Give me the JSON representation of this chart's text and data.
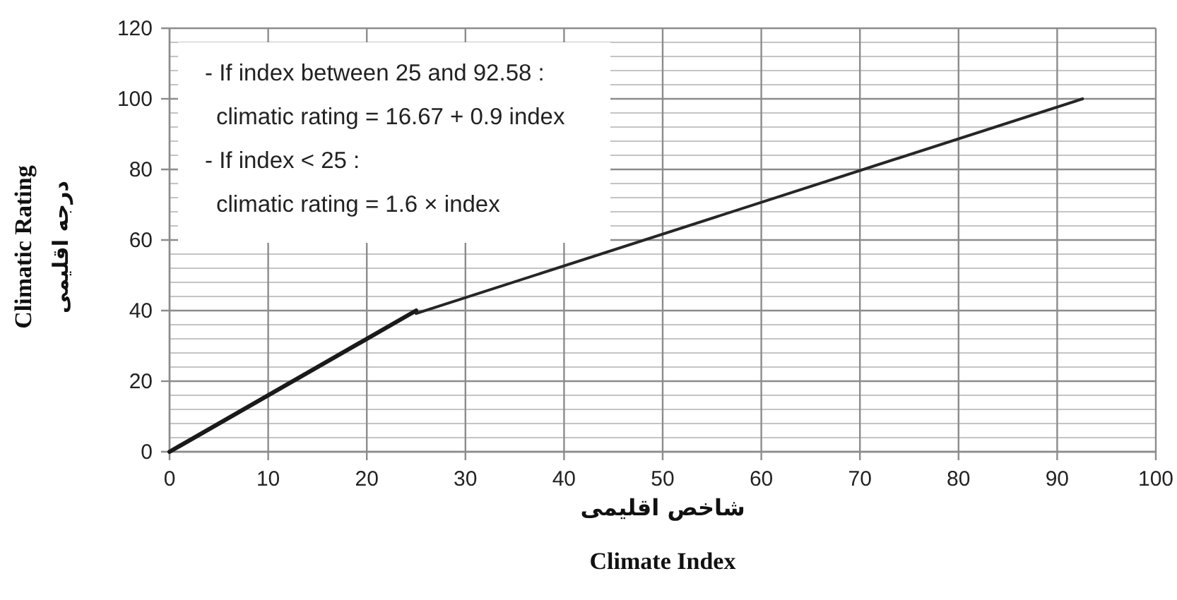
{
  "chart_data": {
    "type": "line",
    "xlabel": "شاخص اقلیمی\nClimate Index",
    "ylabel": "Climatic  Rating\nدرجه اقلیمی",
    "series": [
      {
        "color": "#1a1a1a",
        "x": [
          0,
          25
        ],
        "values": [
          0,
          40
        ]
      },
      {
        "color": "#262626",
        "x": [
          25,
          92.58
        ],
        "values": [
          39.17,
          100
        ]
      }
    ],
    "xlim": [
      0,
      100
    ],
    "ylim": [
      0,
      120
    ],
    "xticks": [
      0,
      10,
      20,
      30,
      40,
      50,
      60,
      70,
      80,
      90,
      100
    ],
    "yticks": [
      0,
      20,
      40,
      60,
      80,
      100,
      120
    ],
    "grid": true,
    "marker": "none",
    "line_style": "solid",
    "annotations": [
      "- If index between 25 and 92.58 :",
      "climatic rating = 16.67 + 0.9 index",
      "- If index < 25 :",
      "climatic rating = 1.6 × index"
    ]
  }
}
